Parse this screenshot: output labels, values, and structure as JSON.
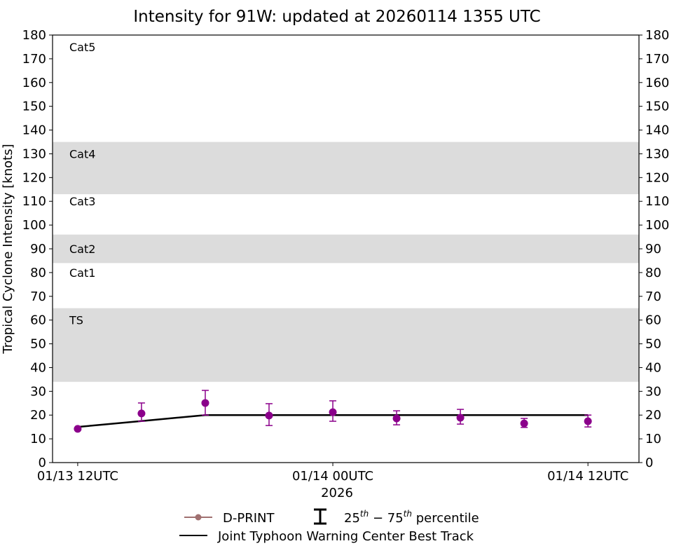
{
  "chart_data": {
    "type": "scatter",
    "title": "Intensity for 91W: updated at 20260114 1355 UTC",
    "ylabel": "Tropical Cyclone Intensity [knots]",
    "xlabel": "2026",
    "ylim": [
      0,
      180
    ],
    "xlim": [
      "2026-01-13 10:49",
      "2026-01-14 14:24"
    ],
    "yticks": [
      0,
      10,
      20,
      30,
      40,
      50,
      60,
      70,
      80,
      90,
      100,
      110,
      120,
      130,
      140,
      150,
      160,
      170,
      180
    ],
    "xticks": [
      {
        "x": "2026-01-13 12:00",
        "label": "01/13 12UTC"
      },
      {
        "x": "2026-01-14 00:00",
        "label": "01/14 00UTC"
      },
      {
        "x": "2026-01-14 12:00",
        "label": "01/14 12UTC"
      }
    ],
    "grid": false,
    "category_bands": [
      {
        "low": 34,
        "high": 65,
        "color": "#dcdcdc"
      },
      {
        "low": 84,
        "high": 96,
        "color": "#dcdcdc"
      },
      {
        "low": 113,
        "high": 135,
        "color": "#dcdcdc"
      }
    ],
    "category_labels": [
      {
        "label": "Cat5",
        "y": 175
      },
      {
        "label": "Cat4",
        "y": 130
      },
      {
        "label": "Cat3",
        "y": 110
      },
      {
        "label": "Cat2",
        "y": 90
      },
      {
        "label": "Cat1",
        "y": 80
      },
      {
        "label": "TS",
        "y": 60
      }
    ],
    "series": [
      {
        "name": "D-PRINT",
        "color": "#8b008b",
        "legend_color": "#a07070",
        "x": [
          "2026-01-13 12:00",
          "2026-01-13 15:00",
          "2026-01-13 18:00",
          "2026-01-13 21:00",
          "2026-01-14 00:00",
          "2026-01-14 03:00",
          "2026-01-14 06:00",
          "2026-01-14 09:00",
          "2026-01-14 12:00"
        ],
        "y": [
          14.2,
          20.7,
          25.1,
          19.8,
          21.2,
          18.6,
          18.9,
          16.5,
          17.4
        ],
        "p25": [
          null,
          17.4,
          20.0,
          15.6,
          17.4,
          15.9,
          16.2,
          14.8,
          15.0
        ],
        "p75": [
          null,
          25.1,
          30.4,
          24.8,
          26.0,
          21.8,
          22.4,
          18.6,
          20.0
        ]
      },
      {
        "name": "Joint Typhoon Warning Center Best Track",
        "color": "#000000",
        "x": [
          "2026-01-13 12:00",
          "2026-01-13 15:00",
          "2026-01-13 18:00",
          "2026-01-13 21:00",
          "2026-01-14 00:00",
          "2026-01-14 03:00",
          "2026-01-14 06:00",
          "2026-01-14 09:00",
          "2026-01-14 12:00"
        ],
        "y": [
          15,
          17.5,
          20,
          20,
          20,
          20,
          20,
          20,
          20
        ]
      }
    ],
    "legend": {
      "placement": "bottom-center",
      "percentile_label_prefix": "25",
      "percentile_sup1": "th",
      "percentile_mid": " − 75",
      "percentile_sup2": "th",
      "percentile_suffix": " percentile"
    }
  }
}
